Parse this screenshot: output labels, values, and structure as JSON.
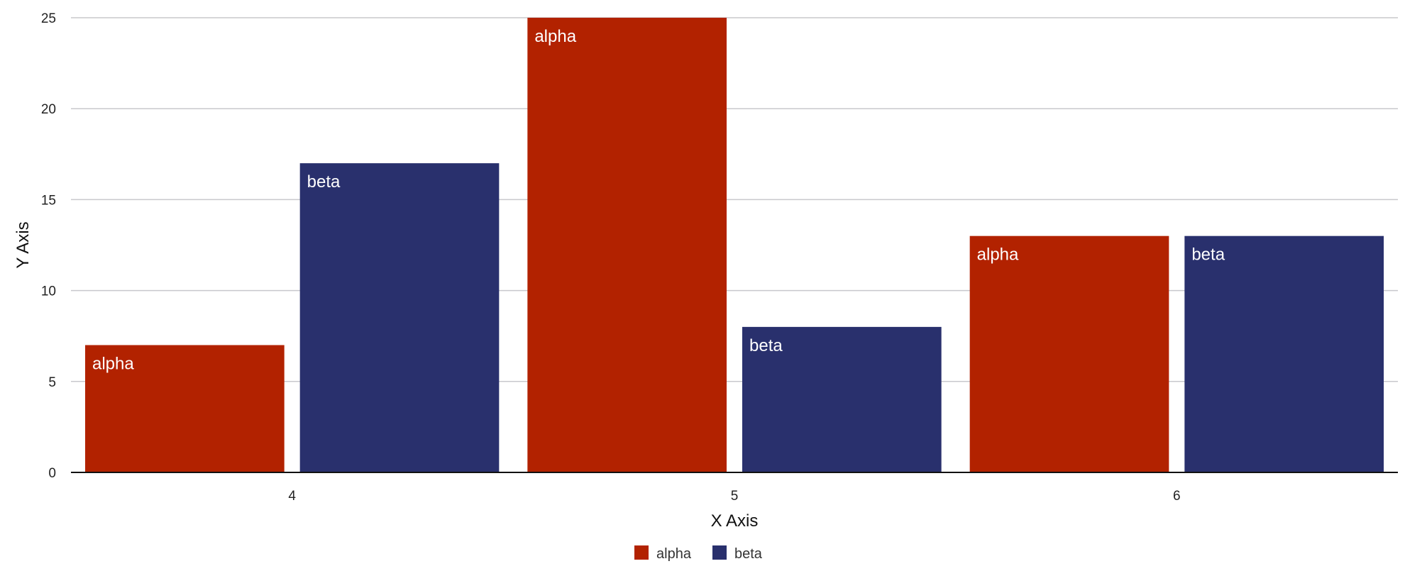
{
  "chart_data": {
    "type": "bar",
    "title": "",
    "xlabel": "X Axis",
    "ylabel": "Y Axis",
    "categories": [
      "4",
      "5",
      "6"
    ],
    "series": [
      {
        "name": "alpha",
        "color": "#b22200",
        "values": [
          7,
          25,
          13
        ]
      },
      {
        "name": "beta",
        "color": "#29306d",
        "values": [
          17,
          8,
          13
        ]
      }
    ],
    "ylim": [
      0,
      25
    ],
    "yticks": [
      0,
      5,
      10,
      15,
      20,
      25
    ],
    "grid": true,
    "legend_position": "bottom-center",
    "bar_labels": "series-name"
  }
}
